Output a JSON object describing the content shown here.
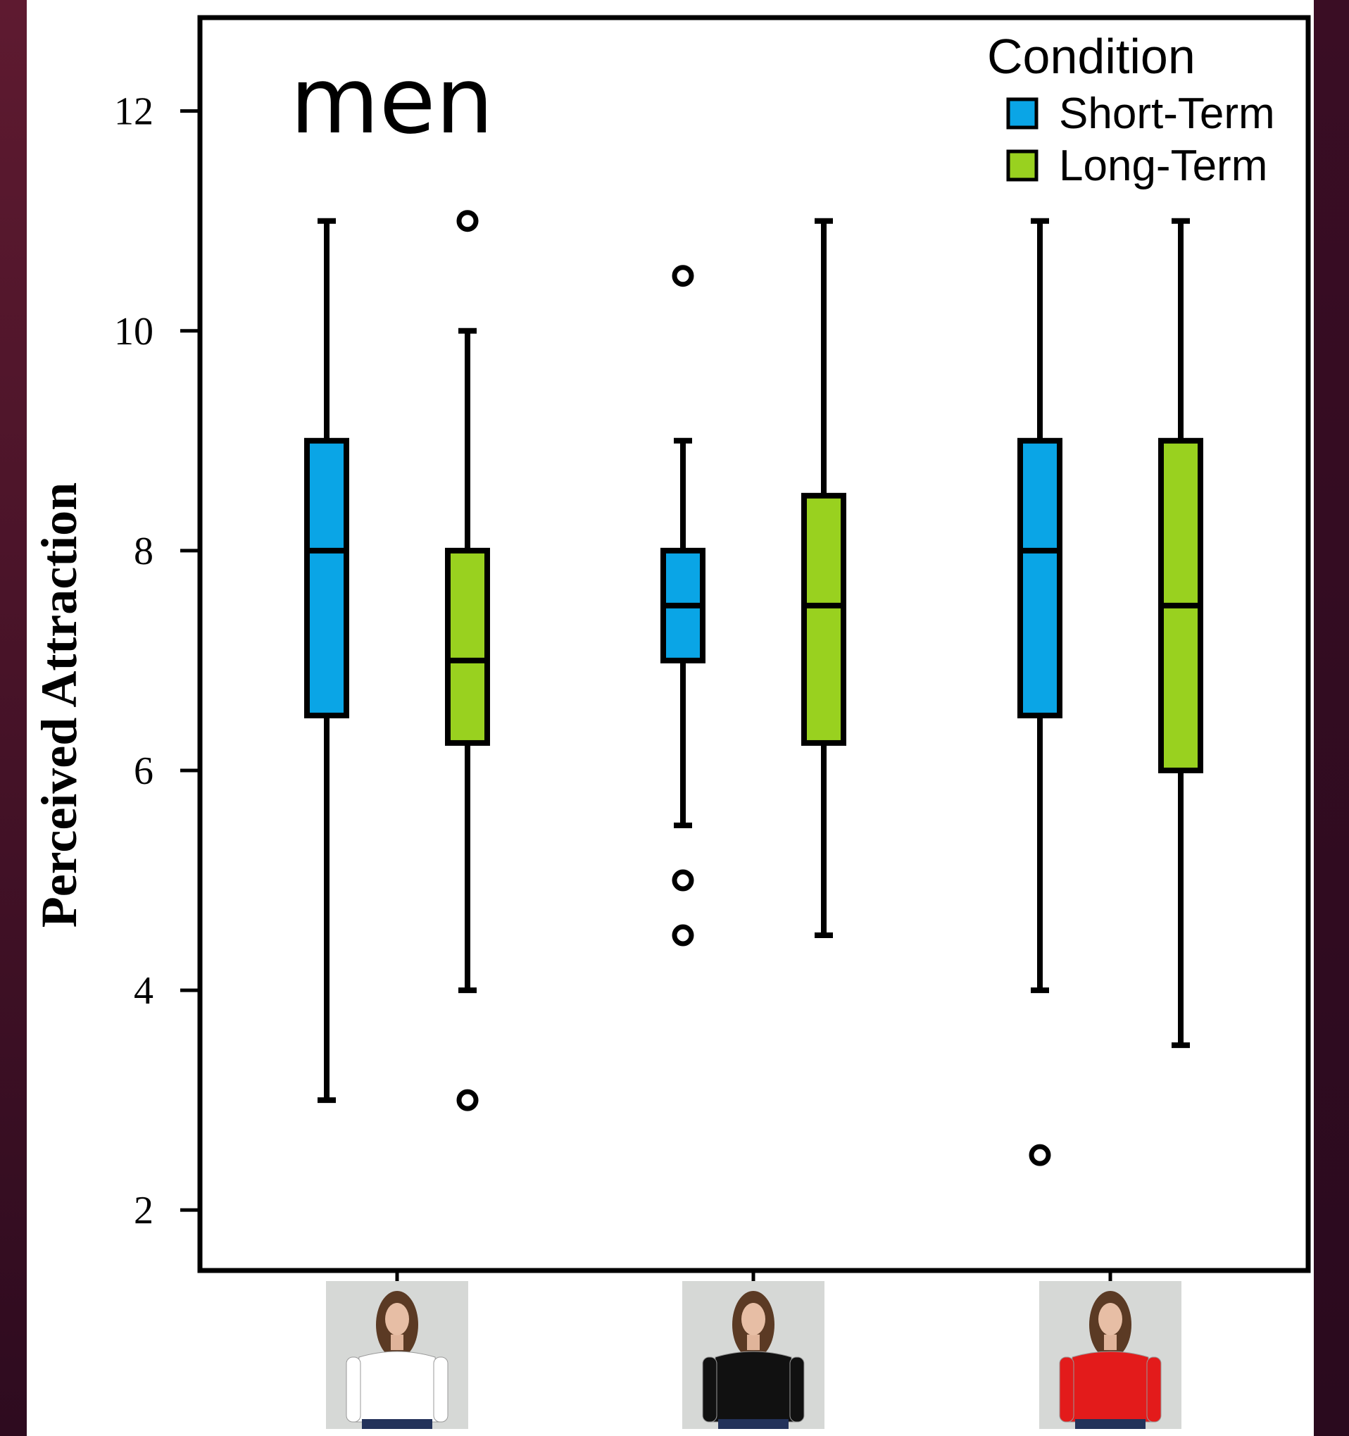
{
  "chart_data": {
    "type": "box",
    "panel_title": "men",
    "ylabel": "Perceived Attraction",
    "xlabel": "",
    "ylim": [
      1.45,
      12.85
    ],
    "yticks": [
      2,
      4,
      6,
      8,
      10,
      12
    ],
    "grid": false,
    "legend": {
      "title": "Condition",
      "placement": "top-right",
      "entries": [
        {
          "name": "Short-Term",
          "color": "#0aa5e6"
        },
        {
          "name": "Long-Term",
          "color": "#99d11f"
        }
      ]
    },
    "categories": [
      {
        "shirt_color": "#ffffff",
        "description_icon": "woman-white-shirt-photo"
      },
      {
        "shirt_color": "#111111",
        "description_icon": "woman-black-shirt-photo"
      },
      {
        "shirt_color": "#e31b1b",
        "description_icon": "woman-red-shirt-photo"
      }
    ],
    "series": [
      {
        "name": "Short-Term",
        "color": "#0aa5e6",
        "boxes": [
          {
            "whisker_low": 3,
            "q1": 6.5,
            "median": 8,
            "q3": 9,
            "whisker_high": 11,
            "outliers": []
          },
          {
            "whisker_low": 5.5,
            "q1": 7,
            "median": 7.5,
            "q3": 8,
            "whisker_high": 9,
            "outliers": [
              10.5,
              5,
              4.5
            ]
          },
          {
            "whisker_low": 4,
            "q1": 6.5,
            "median": 8,
            "q3": 9,
            "whisker_high": 11,
            "outliers": [
              2.5
            ]
          }
        ]
      },
      {
        "name": "Long-Term",
        "color": "#99d11f",
        "boxes": [
          {
            "whisker_low": 4,
            "q1": 6.25,
            "median": 7,
            "q3": 8,
            "whisker_high": 10,
            "outliers": [
              11,
              3
            ]
          },
          {
            "whisker_low": 4.5,
            "q1": 6.25,
            "median": 7.5,
            "q3": 8.5,
            "whisker_high": 11,
            "outliers": []
          },
          {
            "whisker_low": 3.5,
            "q1": 6,
            "median": 7.5,
            "q3": 9,
            "whisker_high": 11,
            "outliers": []
          }
        ]
      }
    ]
  },
  "colors": {
    "frame_left": "#5e1a30",
    "frame_right": "#3a0d24",
    "axis": "#000000"
  }
}
